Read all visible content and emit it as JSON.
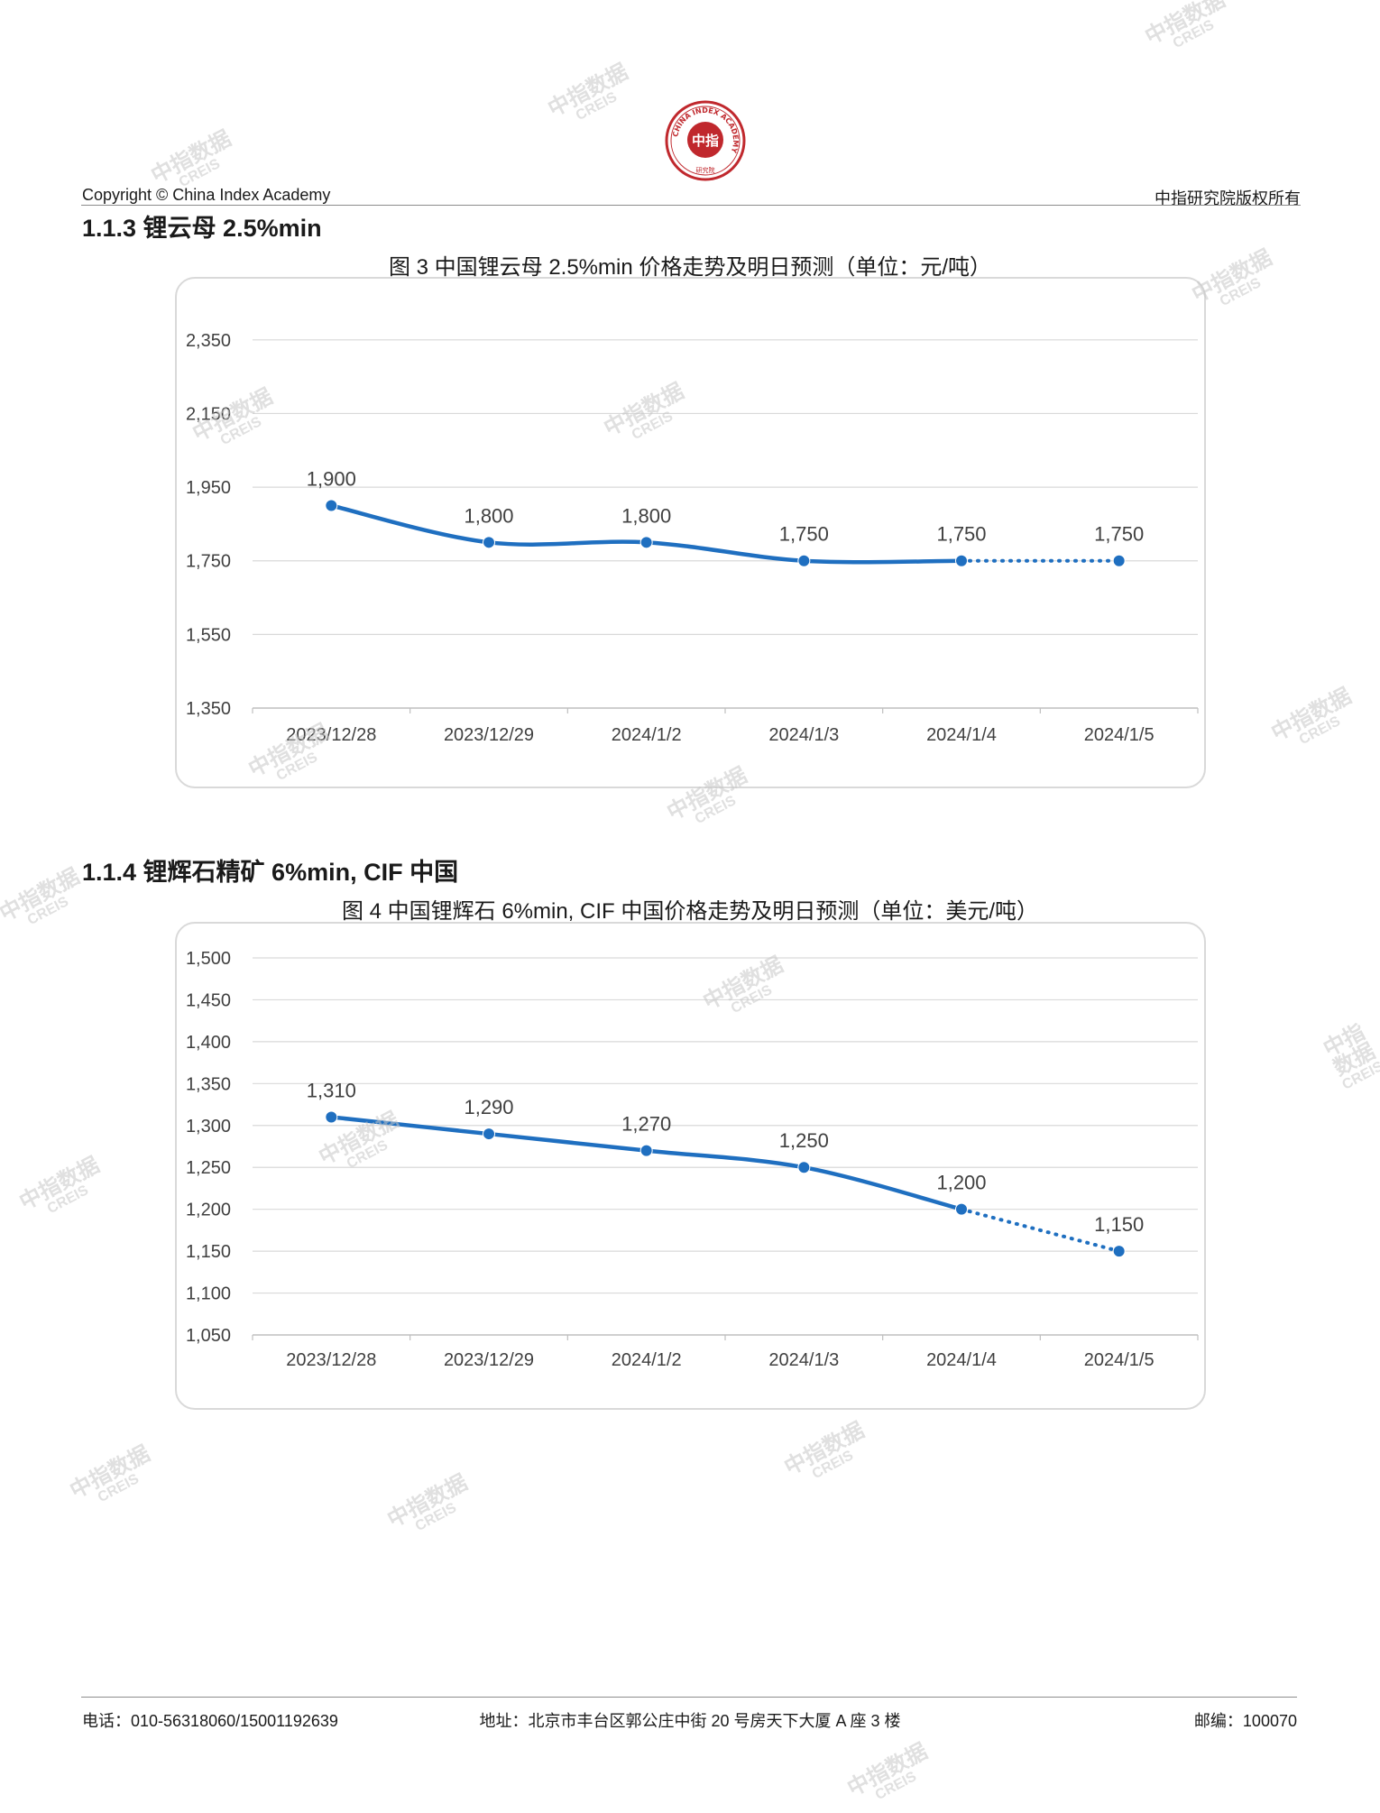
{
  "header": {
    "copyright": "Copyright © China Index Academy",
    "rights": "中指研究院版权所有",
    "logo_text": {
      "ring": "CHINA INDEX ACADEMY",
      "center": "中指",
      "bottom": "研究院"
    }
  },
  "watermark": {
    "line1": "中指数据",
    "line2": "CREIS"
  },
  "sections": [
    {
      "heading": "1.1.3 锂云母 2.5%min",
      "chart_title": "图 3 中国锂云母 2.5%min 价格走势及明日预测（单位：元/吨）"
    },
    {
      "heading": "1.1.4 锂辉石精矿 6%min, CIF 中国",
      "chart_title": "图 4 中国锂辉石 6%min, CIF 中国价格走势及明日预测（单位：美元/吨）"
    }
  ],
  "chart_data": [
    {
      "type": "line",
      "title": "图 3 中国锂云母 2.5%min 价格走势及明日预测（单位：元/吨）",
      "categories": [
        "2023/12/28",
        "2023/12/29",
        "2024/1/2",
        "2024/1/3",
        "2024/1/4",
        "2024/1/5"
      ],
      "values": [
        1900,
        1800,
        1800,
        1750,
        1750,
        1750
      ],
      "value_labels": [
        "1,900",
        "1,800",
        "1,800",
        "1,750",
        "1,750",
        "1,750"
      ],
      "forecast_from_index": 4,
      "yticks": [
        1350,
        1550,
        1750,
        1950,
        2150,
        2350
      ],
      "ytick_labels": [
        "1,350",
        "1,550",
        "1,750",
        "1,950",
        "2,150",
        "2,350"
      ],
      "ylim": [
        1350,
        2450
      ],
      "grid": true,
      "color": "#1f6fc0"
    },
    {
      "type": "line",
      "title": "图 4 中国锂辉石 6%min, CIF 中国价格走势及明日预测（单位：美元/吨）",
      "categories": [
        "2023/12/28",
        "2023/12/29",
        "2024/1/2",
        "2024/1/3",
        "2024/1/4",
        "2024/1/5"
      ],
      "values": [
        1310,
        1290,
        1270,
        1250,
        1200,
        1150
      ],
      "value_labels": [
        "1,310",
        "1,290",
        "1,270",
        "1,250",
        "1,200",
        "1,150"
      ],
      "forecast_from_index": 4,
      "yticks": [
        1050,
        1100,
        1150,
        1200,
        1250,
        1300,
        1350,
        1400,
        1450,
        1500
      ],
      "ytick_labels": [
        "1,050",
        "1,100",
        "1,150",
        "1,200",
        "1,250",
        "1,300",
        "1,350",
        "1,400",
        "1,450",
        "1,500"
      ],
      "ylim": [
        1050,
        1500
      ],
      "grid": true,
      "color": "#1f6fc0"
    }
  ],
  "footer": {
    "phone": "电话：010-56318060/15001192639",
    "address": "地址：北京市丰台区郭公庄中街 20 号房天下大厦 A 座 3 楼",
    "postcode": "邮编：100070"
  }
}
